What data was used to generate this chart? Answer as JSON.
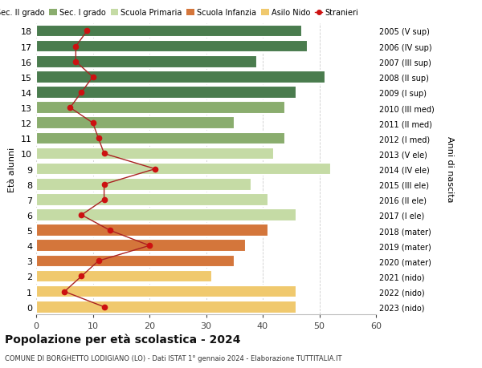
{
  "ages": [
    18,
    17,
    16,
    15,
    14,
    13,
    12,
    11,
    10,
    9,
    8,
    7,
    6,
    5,
    4,
    3,
    2,
    1,
    0
  ],
  "anni_nascita": [
    "2005 (V sup)",
    "2006 (IV sup)",
    "2007 (III sup)",
    "2008 (II sup)",
    "2009 (I sup)",
    "2010 (III med)",
    "2011 (II med)",
    "2012 (I med)",
    "2013 (V ele)",
    "2014 (IV ele)",
    "2015 (III ele)",
    "2016 (II ele)",
    "2017 (I ele)",
    "2018 (mater)",
    "2019 (mater)",
    "2020 (mater)",
    "2021 (nido)",
    "2022 (nido)",
    "2023 (nido)"
  ],
  "bar_values": [
    47,
    48,
    39,
    51,
    46,
    44,
    35,
    44,
    42,
    52,
    38,
    41,
    46,
    41,
    37,
    35,
    31,
    46,
    46
  ],
  "bar_colors": [
    "#4a7c4e",
    "#4a7c4e",
    "#4a7c4e",
    "#4a7c4e",
    "#4a7c4e",
    "#8aad6e",
    "#8aad6e",
    "#8aad6e",
    "#c5dba5",
    "#c5dba5",
    "#c5dba5",
    "#c5dba5",
    "#c5dba5",
    "#d4763b",
    "#d4763b",
    "#d4763b",
    "#f0c96e",
    "#f0c96e",
    "#f0c96e"
  ],
  "stranieri_values": [
    9,
    7,
    7,
    10,
    8,
    6,
    10,
    11,
    12,
    21,
    12,
    12,
    8,
    13,
    20,
    11,
    8,
    5,
    12
  ],
  "legend_labels": [
    "Sec. II grado",
    "Sec. I grado",
    "Scuola Primaria",
    "Scuola Infanzia",
    "Asilo Nido",
    "Stranieri"
  ],
  "legend_colors": [
    "#4a7c4e",
    "#8aad6e",
    "#c5dba5",
    "#d4763b",
    "#f0c96e",
    "#cc1111"
  ],
  "title": "Popolazione per età scolastica - 2024",
  "subtitle": "COMUNE DI BORGHETTO LODIGIANO (LO) - Dati ISTAT 1° gennaio 2024 - Elaborazione TUTTITALIA.IT",
  "ylabel_left": "Età alunni",
  "ylabel_right": "Anni di nascita",
  "xlim": [
    0,
    60
  ],
  "xticks": [
    0,
    10,
    20,
    30,
    40,
    50,
    60
  ],
  "background_color": "#ffffff",
  "bar_background": "#ffffff",
  "grid_color": "#cccccc",
  "bar_height": 0.82,
  "stranieri_line_color": "#aa2222",
  "stranieri_dot_color": "#cc1111"
}
